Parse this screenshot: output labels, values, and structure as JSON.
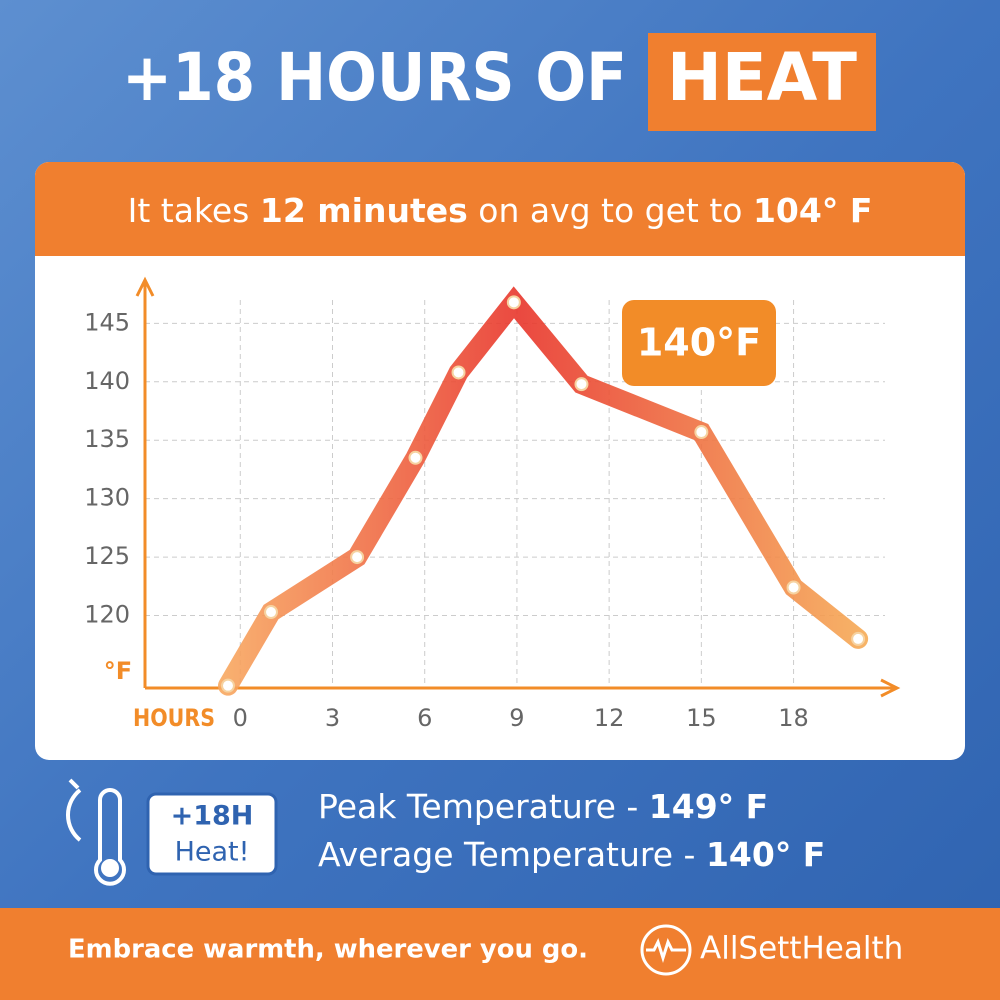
{
  "header": {
    "title": "+18 HOURS OF",
    "title_highlight": "HEAT"
  },
  "subtitle": {
    "parts": [
      "It takes ",
      "12 minutes",
      " on avg to get to ",
      "104° F"
    ]
  },
  "chart_data": {
    "type": "line",
    "x_label": "HOURS",
    "y_label": "°F",
    "x": [
      -0.4,
      1,
      3.8,
      5.7,
      7.1,
      8.9,
      11.1,
      15,
      18,
      20.1
    ],
    "series": [
      {
        "values": [
          114,
          120.3,
          125,
          133.5,
          140.8,
          146.8,
          139.8,
          135.7,
          122.4,
          118
        ],
        "color": "#f28c28"
      }
    ],
    "gradient_colors": [
      "#fcc66e",
      "#e8352b",
      "#f7b55a"
    ],
    "xlim": [
      -3.1,
      21.3
    ],
    "xticks": [
      0,
      3,
      6,
      9,
      12,
      15,
      18
    ],
    "ylim": [
      113.8,
      147
    ],
    "yticks": [
      120,
      125,
      130,
      135,
      140,
      145
    ],
    "grid": true,
    "annotation": "140°F"
  },
  "badge": {
    "line1": "+18H",
    "line2": "Heat!"
  },
  "stats": [
    {
      "label": "Peak Temperature - ",
      "value": "149° F"
    },
    {
      "label": "Average Temperature - ",
      "value": "140° F"
    }
  ],
  "footer": {
    "slogan": "Embrace warmth, wherever you go.",
    "brand": "AllSettHealth"
  }
}
